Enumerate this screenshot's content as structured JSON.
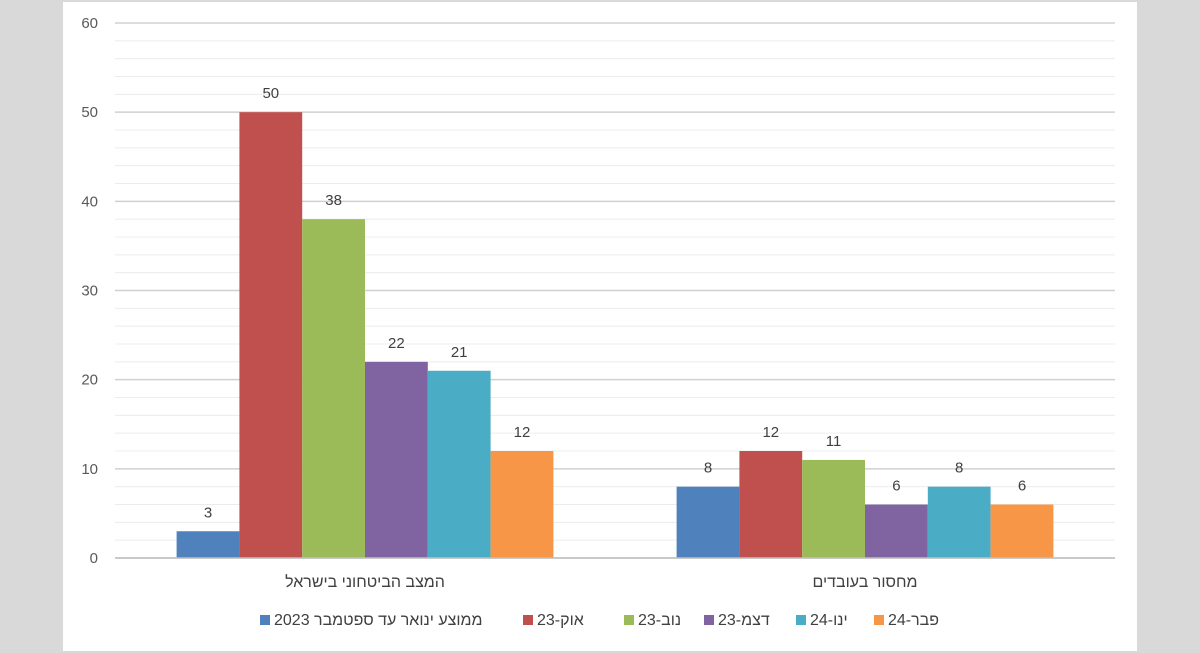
{
  "chart_data": {
    "type": "bar",
    "categories": [
      "מחסור בעובדים",
      "המצב הביטחוני בישראל"
    ],
    "series": [
      {
        "name": "ממוצע ינואר עד ספטמבר 2023",
        "color": "#4f81bd",
        "values": [
          8,
          3
        ]
      },
      {
        "name": "אוק-23",
        "color": "#c0504d",
        "values": [
          12,
          50
        ]
      },
      {
        "name": "נוב-23",
        "color": "#9bbb59",
        "values": [
          11,
          38
        ]
      },
      {
        "name": "דצמ-23",
        "color": "#8064a2",
        "values": [
          6,
          22
        ]
      },
      {
        "name": "ינו-24",
        "color": "#4bacc6",
        "values": [
          8,
          21
        ]
      },
      {
        "name": "פבר-24",
        "color": "#f79646",
        "values": [
          6,
          12
        ]
      }
    ],
    "ylim": [
      0,
      60
    ],
    "yticks": [
      0,
      10,
      20,
      30,
      40,
      50,
      60
    ],
    "grid": true,
    "legend": "bottom"
  }
}
